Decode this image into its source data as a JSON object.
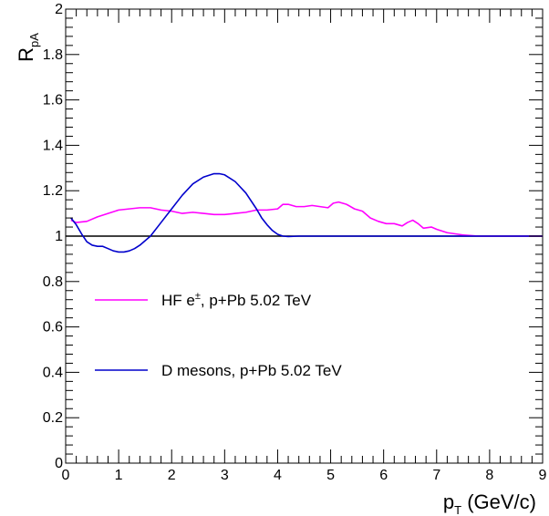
{
  "chart_data": {
    "type": "line",
    "xlim": [
      0,
      9
    ],
    "ylim": [
      0,
      2
    ],
    "x_ticks": [
      0,
      1,
      2,
      3,
      4,
      5,
      6,
      7,
      8,
      9
    ],
    "y_ticks": [
      0,
      0.2,
      0.4,
      0.6,
      0.8,
      1,
      1.2,
      1.4,
      1.6,
      1.8,
      2
    ],
    "x_tick_labels": [
      "0",
      "1",
      "2",
      "3",
      "4",
      "5",
      "6",
      "7",
      "8",
      "9"
    ],
    "y_tick_labels": [
      "0",
      "0.2",
      "0.4",
      "0.6",
      "0.8",
      "1",
      "1.2",
      "1.4",
      "1.6",
      "1.8",
      "2"
    ],
    "xlabel": {
      "main": "p",
      "sub": "T",
      "rest": " (GeV/c)"
    },
    "ylabel": {
      "main": "R",
      "sub": "pA"
    },
    "grid": false,
    "legend_placement": "center-left",
    "reference_line": {
      "y": 1,
      "color": "#000000"
    },
    "series": [
      {
        "name_main": "HF e",
        "name_sup": "±",
        "name_rest": ", p+Pb 5.02 TeV",
        "color": "#ff00ff",
        "x": [
          0.1,
          0.2,
          0.4,
          0.6,
          0.8,
          1.0,
          1.2,
          1.4,
          1.6,
          1.8,
          2.0,
          2.2,
          2.4,
          2.6,
          2.8,
          3.0,
          3.2,
          3.4,
          3.6,
          3.8,
          4.0,
          4.1,
          4.2,
          4.35,
          4.5,
          4.65,
          4.8,
          4.95,
          5.05,
          5.15,
          5.3,
          5.45,
          5.6,
          5.75,
          5.9,
          6.05,
          6.2,
          6.35,
          6.45,
          6.55,
          6.65,
          6.75,
          6.9,
          7.0,
          7.2,
          7.5,
          7.8,
          8.2,
          9.0
        ],
        "y": [
          1.07,
          1.06,
          1.065,
          1.085,
          1.1,
          1.115,
          1.12,
          1.125,
          1.125,
          1.115,
          1.11,
          1.1,
          1.105,
          1.1,
          1.095,
          1.095,
          1.1,
          1.105,
          1.115,
          1.115,
          1.12,
          1.14,
          1.14,
          1.13,
          1.13,
          1.135,
          1.13,
          1.125,
          1.145,
          1.15,
          1.14,
          1.12,
          1.11,
          1.08,
          1.065,
          1.055,
          1.055,
          1.045,
          1.06,
          1.07,
          1.055,
          1.035,
          1.04,
          1.03,
          1.015,
          1.005,
          1.0,
          1.0,
          1.0
        ]
      },
      {
        "name": "D mesons, p+Pb 5.02 TeV",
        "color": "#0000cc",
        "x": [
          0.1,
          0.2,
          0.3,
          0.4,
          0.5,
          0.6,
          0.7,
          0.8,
          0.9,
          1.0,
          1.1,
          1.2,
          1.3,
          1.4,
          1.6,
          1.8,
          2.0,
          2.2,
          2.4,
          2.6,
          2.8,
          2.9,
          3.0,
          3.2,
          3.4,
          3.6,
          3.7,
          3.8,
          3.9,
          4.0,
          4.1,
          4.2,
          4.4,
          5.0,
          6.0,
          7.0,
          8.0,
          9.0
        ],
        "y": [
          1.08,
          1.05,
          1.01,
          0.975,
          0.96,
          0.955,
          0.955,
          0.945,
          0.935,
          0.93,
          0.93,
          0.935,
          0.945,
          0.96,
          1.0,
          1.06,
          1.12,
          1.18,
          1.23,
          1.26,
          1.275,
          1.275,
          1.27,
          1.24,
          1.19,
          1.12,
          1.08,
          1.05,
          1.025,
          1.008,
          1.0,
          0.998,
          1.0,
          1.0,
          1.0,
          1.0,
          1.0,
          1.0
        ]
      }
    ]
  }
}
